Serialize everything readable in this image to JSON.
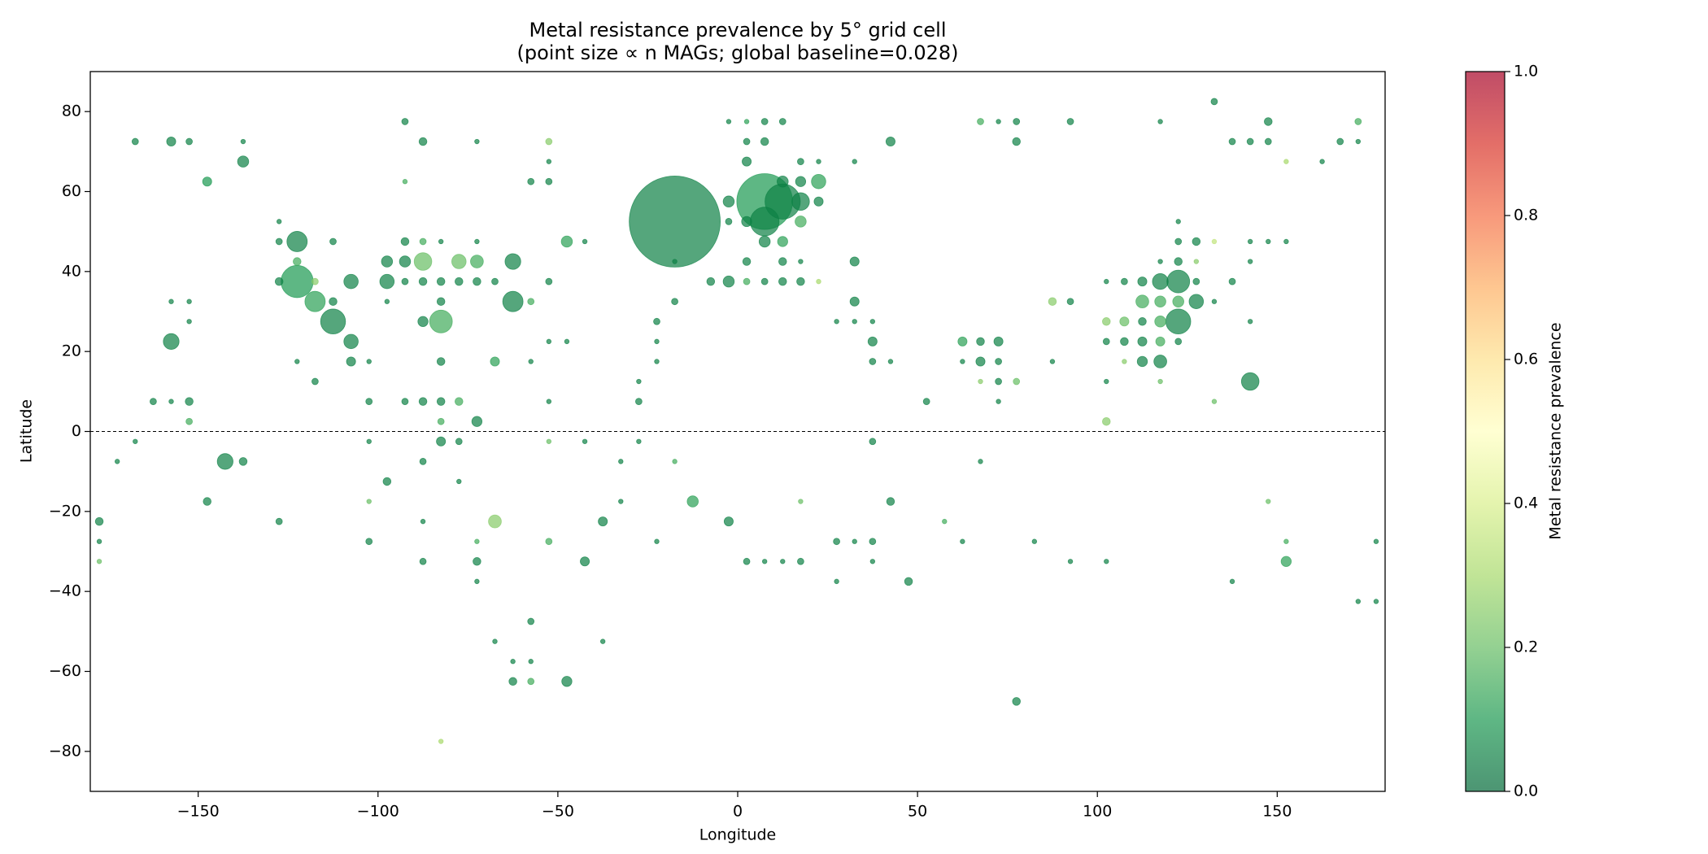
{
  "chart_data": {
    "type": "scatter",
    "title": "Metal resistance prevalence by 5° grid cell",
    "subtitle": "(point size ∝ n MAGs; global baseline=0.028)",
    "xlabel": "Longitude",
    "ylabel": "Latitude",
    "xlim": [
      -180,
      180
    ],
    "ylim": [
      -90,
      90
    ],
    "xticks": [
      {
        "value": -150,
        "label": "−150"
      },
      {
        "value": -100,
        "label": "−100"
      },
      {
        "value": -50,
        "label": "−50"
      },
      0,
      50,
      100,
      150
    ],
    "yticks": [
      {
        "value": -80,
        "label": "−80"
      },
      {
        "value": -60,
        "label": "−60"
      },
      {
        "value": -40,
        "label": "−40"
      },
      {
        "value": -20,
        "label": "−20"
      },
      0,
      20,
      40,
      60,
      80
    ],
    "hline": {
      "y": 0,
      "color": "#000000",
      "style": "dashed"
    },
    "alpha": 0.7,
    "x": [
      -167.5,
      -157.5,
      -152.5,
      -137.5,
      -137.5,
      -147.5,
      -127.5,
      -127.5,
      -122.5,
      -122.5,
      -127.5,
      -122.5,
      -117.5,
      -112.5,
      -112.5,
      -112.5,
      -107.5,
      -107.5,
      -107.5,
      -157.5,
      -157.5,
      -152.5,
      -152.5,
      -162.5,
      -157.5,
      -152.5,
      -152.5,
      -167.5,
      -172.5,
      -142.5,
      -137.5,
      -147.5,
      -177.5,
      -177.5,
      -177.5,
      -127.5,
      -117.5,
      -122.5,
      -117.5,
      -102.5,
      -97.5,
      -97.5,
      -92.5,
      -87.5,
      -77.5,
      -72.5,
      -62.5,
      -92.5,
      -87.5,
      -82.5,
      -72.5,
      -92.5,
      -87.5,
      -72.5,
      -92.5,
      -62.5,
      -82.5,
      -87.5,
      -97.5,
      -82.5,
      -92.5,
      -87.5,
      -82.5,
      -77.5,
      -72.5,
      -67.5,
      -47.5,
      -42.5,
      -52.5,
      -52.5,
      -57.5,
      -52.5,
      -52.5,
      -57.5,
      -67.5,
      -57.5,
      -52.5,
      -47.5,
      -82.5,
      -102.5,
      -92.5,
      -87.5,
      -82.5,
      -77.5,
      -72.5,
      -82.5,
      -82.5,
      -77.5,
      -102.5,
      -87.5,
      -97.5,
      -77.5,
      -102.5,
      -102.5,
      -87.5,
      -67.5,
      -72.5,
      -87.5,
      -72.5,
      -72.5,
      -67.5,
      -57.5,
      -62.5,
      -57.5,
      -62.5,
      -57.5,
      -47.5,
      -82.5,
      -52.5,
      -42.5,
      -37.5,
      -37.5,
      -52.5,
      -52.5,
      -42.5,
      -32.5,
      -32.5,
      -27.5,
      -27.5,
      -27.5,
      -22.5,
      -22.5,
      -22.5,
      -17.5,
      -17.5,
      -22.5,
      -17.5,
      -12.5,
      -2.5,
      -17.5,
      -7.5,
      -2.5,
      -2.5,
      -2.5,
      -2.5,
      2.5,
      7.5,
      12.5,
      2.5,
      7.5,
      2.5,
      17.5,
      22.5,
      32.5,
      7.5,
      12.5,
      7.5,
      17.5,
      22.5,
      22.5,
      17.5,
      17.5,
      12.5,
      7.5,
      2.5,
      12.5,
      2.5,
      12.5,
      17.5,
      2.5,
      7.5,
      12.5,
      17.5,
      22.5,
      32.5,
      32.5,
      27.5,
      32.5,
      37.5,
      37.5,
      37.5,
      42.5,
      42.5,
      2.5,
      7.5,
      12.5,
      17.5,
      17.5,
      27.5,
      32.5,
      37.5,
      37.5,
      27.5,
      47.5,
      42.5,
      37.5,
      52.5,
      57.5,
      62.5,
      82.5,
      92.5,
      102.5,
      62.5,
      67.5,
      72.5,
      62.5,
      67.5,
      72.5,
      67.5,
      72.5,
      77.5,
      72.5,
      67.5,
      67.5,
      72.5,
      77.5,
      77.5,
      92.5,
      77.5,
      87.5,
      92.5,
      87.5,
      102.5,
      102.5,
      102.5,
      102.5,
      107.5,
      112.5,
      102.5,
      107.5,
      112.5,
      117.5,
      122.5,
      107.5,
      112.5,
      117.5,
      117.5,
      107.5,
      112.5,
      117.5,
      122.5,
      127.5,
      112.5,
      117.5,
      122.5,
      127.5,
      132.5,
      122.5,
      117.5,
      117.5,
      122.5,
      127.5,
      122.5,
      127.5,
      132.5,
      122.5,
      117.5,
      132.5,
      137.5,
      142.5,
      142.5,
      147.5,
      152.5,
      142.5,
      142.5,
      132.5,
      137.5,
      142.5,
      147.5,
      147.5,
      152.5,
      162.5,
      167.5,
      172.5,
      172.5,
      147.5,
      152.5,
      152.5,
      137.5,
      172.5,
      177.5,
      177.5
    ],
    "y": [
      72.5,
      72.5,
      72.5,
      72.5,
      67.5,
      62.5,
      52.5,
      47.5,
      47.5,
      37.5,
      37.5,
      42.5,
      32.5,
      27.5,
      47.5,
      32.5,
      37.5,
      22.5,
      17.5,
      22.5,
      32.5,
      32.5,
      27.5,
      7.5,
      7.5,
      7.5,
      2.5,
      -2.5,
      -7.5,
      -7.5,
      -7.5,
      -17.5,
      -22.5,
      -27.5,
      -32.5,
      -22.5,
      12.5,
      17.5,
      37.5,
      17.5,
      42.5,
      37.5,
      42.5,
      42.5,
      42.5,
      42.5,
      42.5,
      47.5,
      47.5,
      47.5,
      47.5,
      77.5,
      72.5,
      72.5,
      62.5,
      32.5,
      27.5,
      27.5,
      32.5,
      32.5,
      37.5,
      37.5,
      37.5,
      37.5,
      37.5,
      37.5,
      47.5,
      47.5,
      37.5,
      62.5,
      62.5,
      72.5,
      67.5,
      32.5,
      17.5,
      17.5,
      22.5,
      22.5,
      17.5,
      7.5,
      7.5,
      7.5,
      7.5,
      7.5,
      2.5,
      2.5,
      -2.5,
      -2.5,
      -2.5,
      -7.5,
      -12.5,
      -12.5,
      -17.5,
      -27.5,
      -22.5,
      -22.5,
      -27.5,
      -32.5,
      -32.5,
      -37.5,
      -52.5,
      -47.5,
      -57.5,
      -57.5,
      -62.5,
      -62.5,
      -62.5,
      -77.5,
      -27.5,
      -32.5,
      -22.5,
      -52.5,
      7.5,
      -2.5,
      -2.5,
      -7.5,
      -17.5,
      -2.5,
      7.5,
      12.5,
      17.5,
      22.5,
      27.5,
      32.5,
      42.5,
      -27.5,
      -7.5,
      -17.5,
      -22.5,
      52.5,
      37.5,
      37.5,
      57.5,
      52.5,
      77.5,
      77.5,
      77.5,
      77.5,
      72.5,
      72.5,
      67.5,
      67.5,
      67.5,
      67.5,
      57.5,
      57.5,
      52.5,
      57.5,
      62.5,
      57.5,
      62.5,
      52.5,
      62.5,
      47.5,
      52.5,
      47.5,
      42.5,
      42.5,
      42.5,
      37.5,
      37.5,
      37.5,
      37.5,
      37.5,
      42.5,
      32.5,
      27.5,
      27.5,
      27.5,
      22.5,
      17.5,
      17.5,
      72.5,
      -32.5,
      -32.5,
      -32.5,
      -32.5,
      -17.5,
      -27.5,
      -27.5,
      -27.5,
      -32.5,
      -37.5,
      -37.5,
      -17.5,
      -2.5,
      7.5,
      -22.5,
      -27.5,
      -27.5,
      -32.5,
      -32.5,
      22.5,
      22.5,
      22.5,
      17.5,
      17.5,
      17.5,
      12.5,
      12.5,
      12.5,
      7.5,
      -7.5,
      77.5,
      77.5,
      77.5,
      72.5,
      77.5,
      -67.5,
      32.5,
      32.5,
      17.5,
      2.5,
      12.5,
      37.5,
      27.5,
      27.5,
      27.5,
      22.5,
      22.5,
      22.5,
      22.5,
      22.5,
      17.5,
      17.5,
      17.5,
      12.5,
      37.5,
      37.5,
      37.5,
      37.5,
      37.5,
      32.5,
      32.5,
      32.5,
      32.5,
      32.5,
      27.5,
      27.5,
      42.5,
      42.5,
      42.5,
      47.5,
      47.5,
      47.5,
      52.5,
      77.5,
      82.5,
      37.5,
      42.5,
      47.5,
      47.5,
      47.5,
      27.5,
      12.5,
      7.5,
      72.5,
      72.5,
      72.5,
      77.5,
      67.5,
      67.5,
      72.5,
      72.5,
      77.5,
      -17.5,
      -27.5,
      -32.5,
      -37.5,
      -42.5,
      -42.5,
      -27.5
    ],
    "sizes": [
      2,
      4,
      2,
      1,
      6,
      4,
      1,
      2,
      20,
      50,
      3,
      3,
      20,
      30,
      2,
      3,
      10,
      10,
      4,
      12,
      1,
      1,
      1,
      2,
      1,
      3,
      2,
      1,
      1,
      12,
      3,
      3,
      3,
      1,
      1,
      2,
      2,
      1,
      2,
      1,
      6,
      10,
      6,
      15,
      10,
      8,
      12,
      3,
      2,
      1,
      1,
      2,
      3,
      1,
      1,
      20,
      25,
      5,
      1,
      3,
      2,
      3,
      3,
      3,
      3,
      2,
      6,
      1,
      2,
      2,
      2,
      2,
      1,
      2,
      4,
      1,
      1,
      1,
      3,
      2,
      2,
      3,
      3,
      3,
      5,
      2,
      4,
      2,
      1,
      2,
      3,
      1,
      1,
      2,
      1,
      8,
      1,
      2,
      3,
      1,
      1,
      2,
      1,
      1,
      3,
      2,
      5,
      1,
      2,
      4,
      4,
      1,
      1,
      1,
      1,
      1,
      1,
      1,
      2,
      1,
      1,
      1,
      2,
      2,
      1,
      1,
      1,
      6,
      4,
      400,
      3,
      6,
      6,
      2,
      1,
      1,
      2,
      2,
      2,
      3,
      4,
      2,
      1,
      1,
      150,
      60,
      40,
      15,
      10,
      4,
      5,
      6,
      6,
      6,
      5,
      5,
      3,
      3,
      1,
      2,
      2,
      3,
      3,
      1,
      4,
      4,
      1,
      1,
      1,
      4,
      2,
      1,
      4,
      2,
      1,
      1,
      2,
      1,
      2,
      1,
      2,
      1,
      1,
      3,
      3,
      2,
      2,
      1,
      1,
      1,
      1,
      1,
      4,
      3,
      4,
      1,
      4,
      2,
      1,
      2,
      2,
      1,
      1,
      2,
      1,
      2,
      3,
      2,
      3,
      3,
      2,
      1,
      3,
      1,
      1,
      3,
      4,
      3,
      2,
      3,
      4,
      4,
      2,
      1,
      5,
      8,
      1,
      2,
      4,
      12,
      25,
      2,
      8,
      6,
      6,
      10,
      1,
      30,
      6,
      1,
      3,
      1,
      2,
      3,
      1,
      1,
      1,
      2,
      2,
      1,
      1,
      1,
      1,
      1,
      15,
      1,
      2,
      2,
      2,
      3,
      1,
      1,
      2,
      1,
      2,
      1,
      1,
      5,
      1,
      1,
      1,
      1
    ],
    "prevalence": [
      0.05,
      0.05,
      0.05,
      0.05,
      0.05,
      0.1,
      0.05,
      0.05,
      0.05,
      0.1,
      0.05,
      0.15,
      0.12,
      0.05,
      0.05,
      0.05,
      0.05,
      0.05,
      0.05,
      0.05,
      0.05,
      0.05,
      0.05,
      0.05,
      0.05,
      0.05,
      0.15,
      0.05,
      0.05,
      0.05,
      0.05,
      0.05,
      0.05,
      0.05,
      0.2,
      0.05,
      0.05,
      0.05,
      0.25,
      0.05,
      0.05,
      0.05,
      0.05,
      0.2,
      0.2,
      0.15,
      0.05,
      0.05,
      0.15,
      0.05,
      0.05,
      0.05,
      0.05,
      0.05,
      0.15,
      0.05,
      0.15,
      0.05,
      0.05,
      0.05,
      0.05,
      0.05,
      0.05,
      0.05,
      0.05,
      0.05,
      0.12,
      0.05,
      0.05,
      0.05,
      0.05,
      0.25,
      0.05,
      0.15,
      0.12,
      0.05,
      0.05,
      0.05,
      0.05,
      0.05,
      0.05,
      0.05,
      0.05,
      0.15,
      0.05,
      0.15,
      0.05,
      0.05,
      0.05,
      0.05,
      0.05,
      0.05,
      0.2,
      0.05,
      0.05,
      0.25,
      0.15,
      0.05,
      0.05,
      0.05,
      0.05,
      0.05,
      0.05,
      0.05,
      0.05,
      0.15,
      0.05,
      0.3,
      0.15,
      0.05,
      0.05,
      0.05,
      0.05,
      0.2,
      0.05,
      0.05,
      0.05,
      0.05,
      0.05,
      0.05,
      0.05,
      0.05,
      0.05,
      0.05,
      0.05,
      0.05,
      0.15,
      0.12,
      0.05,
      0.05,
      0.05,
      0.05,
      0.05,
      0.05,
      0.05,
      0.12,
      0.05,
      0.05,
      0.05,
      0.05,
      0.05,
      0.05,
      0.05,
      0.05,
      0.1,
      0.05,
      0.05,
      0.05,
      0.12,
      0.05,
      0.05,
      0.15,
      0.05,
      0.05,
      0.05,
      0.12,
      0.05,
      0.05,
      0.05,
      0.15,
      0.05,
      0.05,
      0.05,
      0.3,
      0.05,
      0.05,
      0.05,
      0.05,
      0.05,
      0.05,
      0.05,
      0.05,
      0.05,
      0.05,
      0.05,
      0.05,
      0.05,
      0.2,
      0.05,
      0.05,
      0.05,
      0.05,
      0.05,
      0.05,
      0.05,
      0.05,
      0.05,
      0.15,
      0.05,
      0.05,
      0.05,
      0.05,
      0.12,
      0.05,
      0.05,
      0.05,
      0.05,
      0.05,
      0.25,
      0.05,
      0.2,
      0.05,
      0.05,
      0.15,
      0.05,
      0.05,
      0.05,
      0.05,
      0.05,
      0.25,
      0.05,
      0.05,
      0.25,
      0.05,
      0.05,
      0.25,
      0.2,
      0.05,
      0.05,
      0.05,
      0.05,
      0.15,
      0.05,
      0.25,
      0.05,
      0.05,
      0.2,
      0.05,
      0.05,
      0.05,
      0.05,
      0.05,
      0.15,
      0.15,
      0.15,
      0.05,
      0.05,
      0.05,
      0.15,
      0.05,
      0.05,
      0.25,
      0.05,
      0.05,
      0.35,
      0.05,
      0.05,
      0.05,
      0.05,
      0.05,
      0.05,
      0.05,
      0.05,
      0.05,
      0.05,
      0.2,
      0.05,
      0.05,
      0.05,
      0.05,
      0.3,
      0.05,
      0.05,
      0.05,
      0.15,
      0.2,
      0.15,
      0.12,
      0.05,
      0.05,
      0.05,
      0.05
    ],
    "colorbar": {
      "label": "Metal resistance prevalence",
      "clim": [
        0,
        1
      ],
      "ticks": [
        {
          "value": 0,
          "label": "0.0"
        },
        {
          "value": 0.2,
          "label": "0.2"
        },
        {
          "value": 0.4,
          "label": "0.4"
        },
        {
          "value": 0.6,
          "label": "0.6"
        },
        {
          "value": 0.8,
          "label": "0.8"
        },
        {
          "value": 1,
          "label": "1.0"
        }
      ],
      "colormap": [
        "#006837",
        "#1a9850",
        "#66bd63",
        "#a6d96a",
        "#d9ef8b",
        "#ffffbf",
        "#fee08b",
        "#fdae61",
        "#f46d43",
        "#d73027",
        "#a50026"
      ]
    }
  }
}
